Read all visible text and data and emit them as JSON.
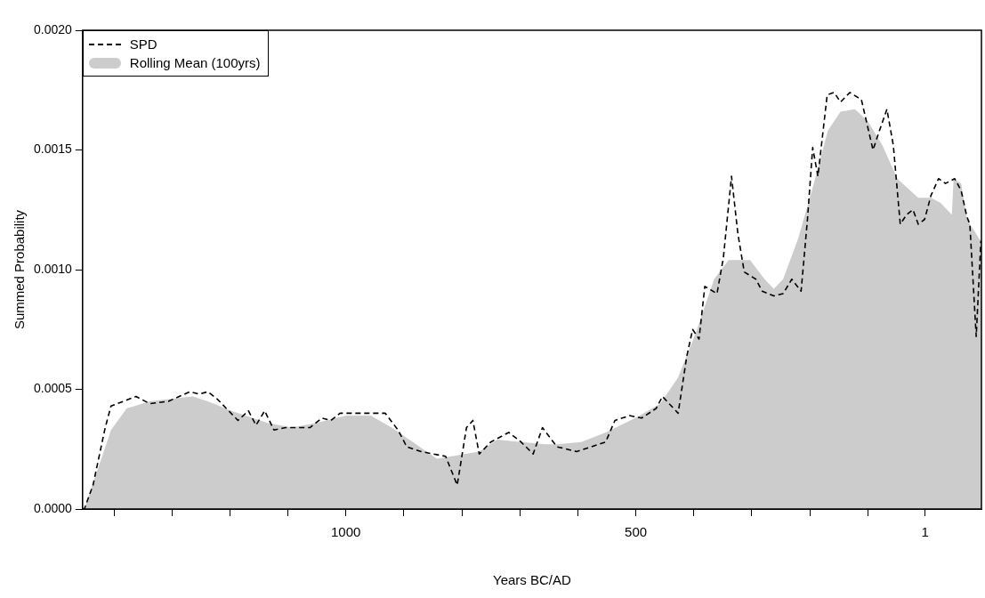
{
  "chart_data": {
    "type": "line",
    "xlabel": "Years BC/AD",
    "ylabel": "Summed Probability",
    "xlim": [
      1454,
      -96
    ],
    "xticks": [
      {
        "value": 1400,
        "label": null
      },
      {
        "value": 1300,
        "label": null
      },
      {
        "value": 1200,
        "label": null
      },
      {
        "value": 1100,
        "label": null
      },
      1000,
      {
        "value": 900,
        "label": null
      },
      {
        "value": 800,
        "label": null
      },
      {
        "value": 700,
        "label": null
      },
      {
        "value": 600,
        "label": null
      },
      500,
      {
        "value": 400,
        "label": null
      },
      {
        "value": 300,
        "label": null
      },
      {
        "value": 200,
        "label": null
      },
      {
        "value": 100,
        "label": null
      },
      1
    ],
    "ylim": [
      0,
      0.002
    ],
    "yticks": [
      {
        "value": 0,
        "label": "0.0000"
      },
      {
        "value": 0.0005,
        "label": "0.0005"
      },
      {
        "value": 0.001,
        "label": "0.0010"
      },
      {
        "value": 0.0015,
        "label": "0.0015"
      },
      {
        "value": 0.002,
        "label": "0.0020"
      }
    ],
    "grid": false,
    "legend": "top left",
    "marker": "none",
    "series": [
      {
        "name": "SPD",
        "line_style": "dashed",
        "color": "#000000",
        "x": [
          1454,
          1451,
          1436,
          1415,
          1405,
          1362,
          1338,
          1306,
          1269,
          1253,
          1238,
          1222,
          1202,
          1186,
          1168,
          1155,
          1140,
          1124,
          1104,
          1062,
          1041,
          1026,
          1010,
          932,
          910,
          895,
          870,
          828,
          808,
          792,
          781,
          770,
          750,
          719,
          698,
          677,
          661,
          636,
          602,
          552,
          536,
          511,
          490,
          465,
          454,
          427,
          412,
          402,
          391,
          381,
          360,
          349,
          335,
          324,
          313,
          293,
          282,
          262,
          246,
          231,
          215,
          204,
          195,
          186,
          170,
          158,
          147,
          131,
          111,
          91,
          80,
          67,
          56,
          44,
          33,
          22,
          13,
          2,
          -9,
          -22,
          -34,
          -50,
          -61,
          -71,
          -76,
          -87,
          -95
        ],
        "values": [
          0,
          0,
          0.0001,
          0.00034,
          0.00043,
          0.00047,
          0.00044,
          0.00045,
          0.00049,
          0.00048,
          0.00049,
          0.00046,
          0.00041,
          0.00037,
          0.00041,
          0.00035,
          0.00041,
          0.00033,
          0.00034,
          0.00034,
          0.00038,
          0.00037,
          0.0004,
          0.0004,
          0.00033,
          0.00026,
          0.00024,
          0.00022,
          0.0001,
          0.00034,
          0.00037,
          0.00023,
          0.00028,
          0.00032,
          0.00028,
          0.00023,
          0.00034,
          0.00026,
          0.00024,
          0.00028,
          0.00037,
          0.00039,
          0.00038,
          0.00042,
          0.00047,
          0.0004,
          0.00064,
          0.00075,
          0.00071,
          0.00093,
          0.0009,
          0.00105,
          0.00139,
          0.00115,
          0.00099,
          0.00096,
          0.00091,
          0.00089,
          0.0009,
          0.00096,
          0.00091,
          0.00121,
          0.00151,
          0.00139,
          0.00173,
          0.00174,
          0.0017,
          0.00174,
          0.00171,
          0.0015,
          0.00158,
          0.00167,
          0.00152,
          0.00119,
          0.00123,
          0.00125,
          0.00119,
          0.00121,
          0.00131,
          0.00138,
          0.00136,
          0.00138,
          0.00133,
          0.00122,
          0.00119,
          0.00072,
          0.00112
        ]
      },
      {
        "name": "Rolling Mean (100yrs)",
        "type": "area",
        "color": "#cccccc",
        "x": [
          1454,
          1451,
          1405,
          1378,
          1338,
          1264,
          1238,
          1197,
          1135,
          1093,
          1051,
          999,
          957,
          921,
          879,
          843,
          770,
          739,
          698,
          656,
          636,
          594,
          552,
          501,
          458,
          427,
          396,
          365,
          340,
          303,
          278,
          262,
          246,
          220,
          193,
          169,
          147,
          122,
          100,
          75,
          49,
          13,
          -9,
          -25,
          -45,
          -48,
          -61,
          -71,
          -92,
          -96
        ],
        "values": [
          0,
          0,
          0.00033,
          0.00042,
          0.00045,
          0.00047,
          0.00045,
          0.00041,
          0.00036,
          0.00034,
          0.00036,
          0.00039,
          0.00039,
          0.00034,
          0.00027,
          0.00021,
          0.00024,
          0.00029,
          0.00028,
          0.00027,
          0.00027,
          0.00028,
          0.00032,
          0.00038,
          0.00044,
          0.00055,
          0.00074,
          0.00096,
          0.00104,
          0.00104,
          0.00096,
          0.00092,
          0.00096,
          0.00113,
          0.00136,
          0.00158,
          0.00166,
          0.00167,
          0.00162,
          0.00152,
          0.00138,
          0.0013,
          0.0013,
          0.00128,
          0.00123,
          0.00138,
          0.00136,
          0.00121,
          0.00113,
          0.00112
        ]
      }
    ]
  }
}
